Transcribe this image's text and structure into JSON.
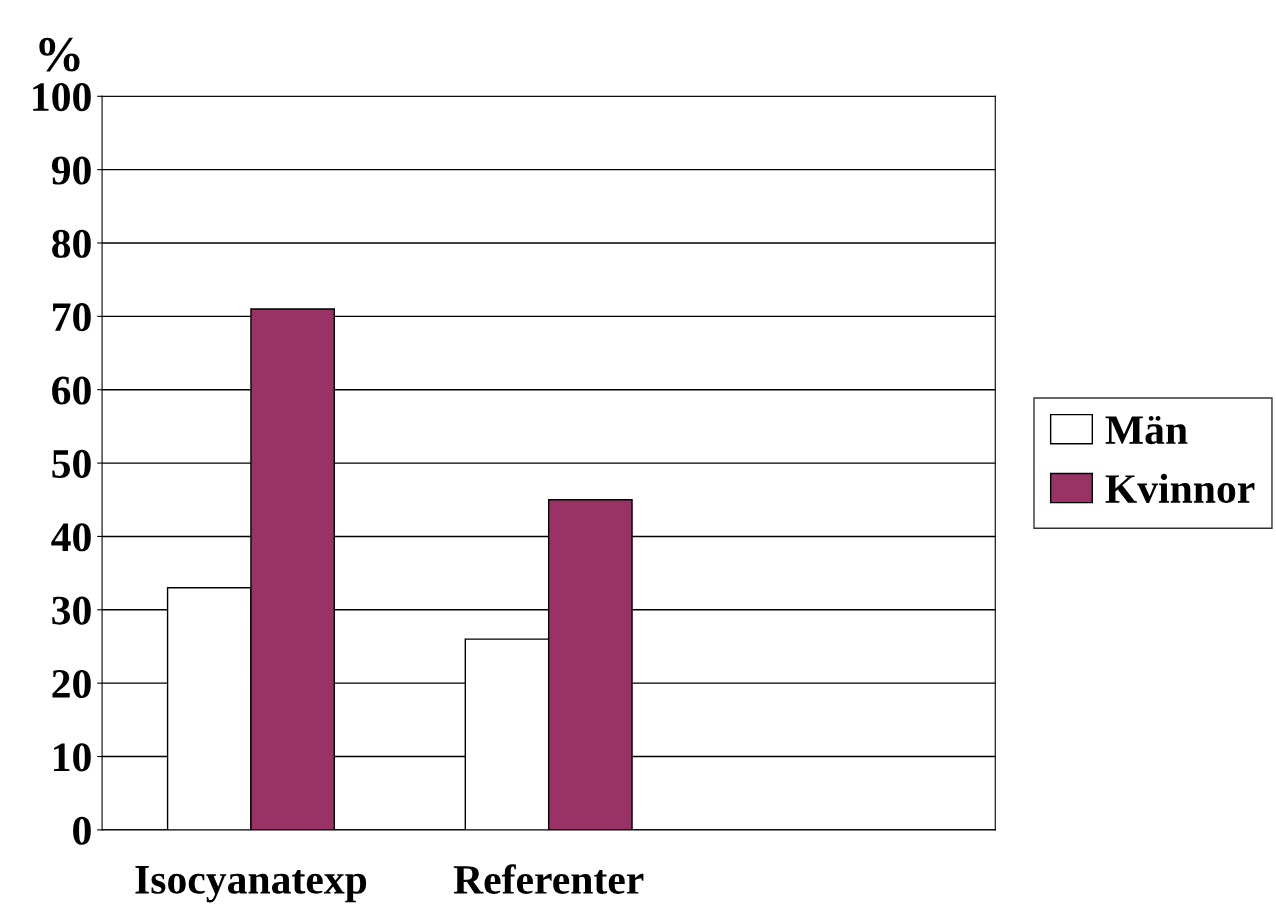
{
  "chart_data": {
    "type": "bar",
    "ylabel": "%",
    "categories": [
      "Isocyanatexp",
      "Referenter",
      null
    ],
    "series": [
      {
        "name": "Män",
        "color": "#ffffff",
        "values": [
          33,
          26,
          null
        ]
      },
      {
        "name": "Kvinnor",
        "color": "#993366",
        "values": [
          71,
          45,
          null
        ]
      }
    ],
    "ylim": [
      0,
      100
    ],
    "yticks": [
      0,
      10,
      20,
      30,
      40,
      50,
      60,
      70,
      80,
      90,
      100
    ],
    "grid": "y",
    "legend": "right"
  }
}
